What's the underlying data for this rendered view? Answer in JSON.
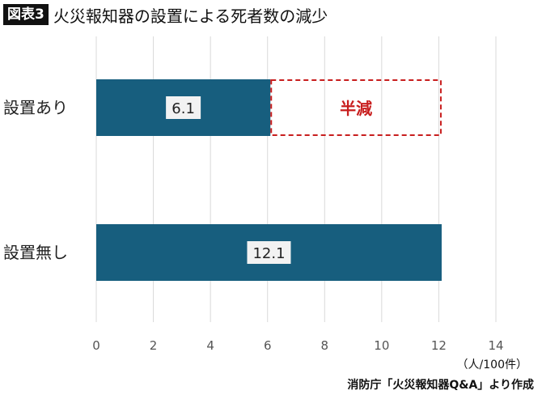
{
  "badge": "図表3",
  "title": "火災報知器の設置による死者数の減少",
  "unit": "（人/100件）",
  "source": "消防庁「火災報知器Q&A」より作成",
  "chart_data": {
    "type": "bar",
    "orientation": "horizontal",
    "categories": [
      "設置あり",
      "設置無し"
    ],
    "values": [
      6.1,
      12.1
    ],
    "data_labels": [
      "6.1",
      "12.1"
    ],
    "annotation": "半減",
    "annotation_range": [
      6.1,
      12.1
    ],
    "xlim": [
      0,
      14
    ],
    "xticks": [
      "0",
      "2",
      "4",
      "6",
      "8",
      "10",
      "12",
      "14"
    ],
    "xlabel": "（人/100件）",
    "grid": "vertical",
    "colors": {
      "bar": "#175e7e",
      "annotation": "#c81e1e"
    }
  }
}
